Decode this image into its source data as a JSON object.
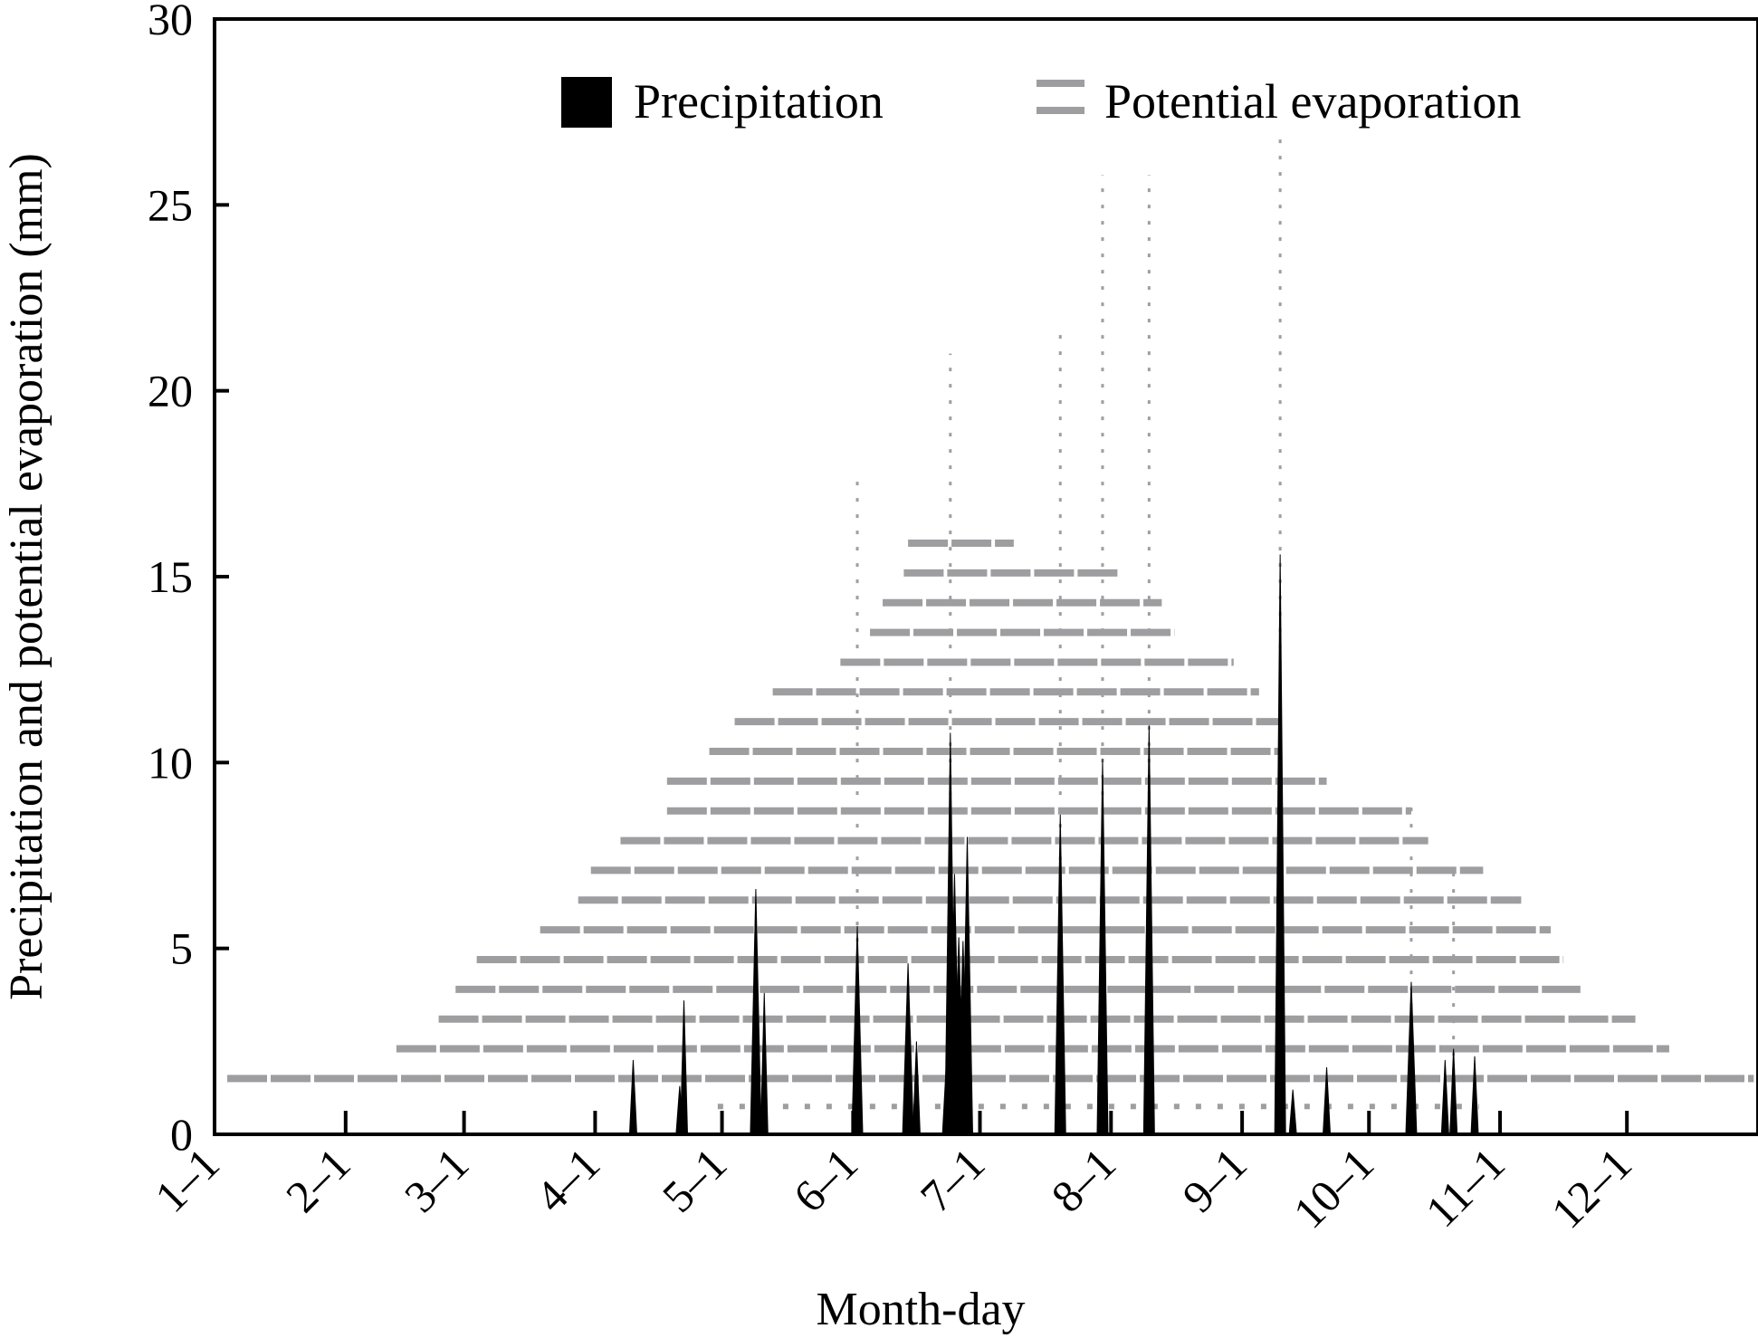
{
  "chart_data": {
    "type": "area",
    "title": "",
    "xlabel": "Month-day",
    "ylabel": "Precipitation and potential evaporation (mm)",
    "x_domain": [
      1,
      366
    ],
    "ylim": [
      0,
      30
    ],
    "y_ticks": [
      0,
      5,
      10,
      15,
      20,
      25,
      30
    ],
    "x_ticks": [
      {
        "day": 1,
        "label": "1–1"
      },
      {
        "day": 32,
        "label": "2–1"
      },
      {
        "day": 60,
        "label": "3–1"
      },
      {
        "day": 91,
        "label": "4–1"
      },
      {
        "day": 121,
        "label": "5–1"
      },
      {
        "day": 152,
        "label": "6–1"
      },
      {
        "day": 182,
        "label": "7–1"
      },
      {
        "day": 213,
        "label": "8–1"
      },
      {
        "day": 244,
        "label": "9–1"
      },
      {
        "day": 274,
        "label": "10–1"
      },
      {
        "day": 305,
        "label": "11–1"
      },
      {
        "day": 335,
        "label": "12–1"
      }
    ],
    "grid": false,
    "legend_position": "top",
    "colors": {
      "precipitation": "#000000",
      "potential_evaporation": "#9e9ea0"
    },
    "series": [
      {
        "name": "Precipitation",
        "style": "filled spikes",
        "points": [
          {
            "day": 100,
            "value": 2.0
          },
          {
            "day": 111,
            "value": 1.3
          },
          {
            "day": 112,
            "value": 3.6
          },
          {
            "day": 129,
            "value": 6.6
          },
          {
            "day": 131,
            "value": 3.8
          },
          {
            "day": 153,
            "value": 5.6
          },
          {
            "day": 165,
            "value": 4.6
          },
          {
            "day": 167,
            "value": 2.5
          },
          {
            "day": 174,
            "value": 1.8
          },
          {
            "day": 175,
            "value": 10.8
          },
          {
            "day": 176,
            "value": 7.0
          },
          {
            "day": 177,
            "value": 5.3
          },
          {
            "day": 178,
            "value": 5.2
          },
          {
            "day": 179,
            "value": 8.0
          },
          {
            "day": 201,
            "value": 8.6
          },
          {
            "day": 211,
            "value": 10.1
          },
          {
            "day": 222,
            "value": 11.0
          },
          {
            "day": 253,
            "value": 15.6
          },
          {
            "day": 256,
            "value": 1.2
          },
          {
            "day": 264,
            "value": 1.8
          },
          {
            "day": 284,
            "value": 4.1
          },
          {
            "day": 292,
            "value": 2.0
          },
          {
            "day": 294,
            "value": 2.3
          },
          {
            "day": 299,
            "value": 2.1
          }
        ]
      },
      {
        "name": "Potential evaporation",
        "style": "dashed horizontal bands (one per mm level)",
        "bands": [
          {
            "level": 1.5,
            "start_day": 4,
            "end_day": 365
          },
          {
            "level": 2.3,
            "start_day": 44,
            "end_day": 345
          },
          {
            "level": 3.1,
            "start_day": 54,
            "end_day": 337
          },
          {
            "level": 3.9,
            "start_day": 58,
            "end_day": 324
          },
          {
            "level": 4.7,
            "start_day": 63,
            "end_day": 320
          },
          {
            "level": 5.5,
            "start_day": 78,
            "end_day": 317
          },
          {
            "level": 6.3,
            "start_day": 87,
            "end_day": 310
          },
          {
            "level": 7.1,
            "start_day": 90,
            "end_day": 301
          },
          {
            "level": 7.9,
            "start_day": 97,
            "end_day": 288
          },
          {
            "level": 8.7,
            "start_day": 108,
            "end_day": 284
          },
          {
            "level": 9.5,
            "start_day": 108,
            "end_day": 264
          },
          {
            "level": 10.3,
            "start_day": 118,
            "end_day": 253
          },
          {
            "level": 11.1,
            "start_day": 124,
            "end_day": 253
          },
          {
            "level": 11.9,
            "start_day": 133,
            "end_day": 248
          },
          {
            "level": 12.7,
            "start_day": 149,
            "end_day": 242
          },
          {
            "level": 13.5,
            "start_day": 156,
            "end_day": 228
          },
          {
            "level": 14.3,
            "start_day": 159,
            "end_day": 225
          },
          {
            "level": 15.1,
            "start_day": 164,
            "end_day": 215
          },
          {
            "level": 15.9,
            "start_day": 165,
            "end_day": 190
          }
        ],
        "peaks": [
          {
            "day": 153,
            "value": 17.8
          },
          {
            "day": 175,
            "value": 21.0
          },
          {
            "day": 201,
            "value": 21.8
          },
          {
            "day": 211,
            "value": 25.8
          },
          {
            "day": 222,
            "value": 25.8
          },
          {
            "day": 253,
            "value": 26.8
          },
          {
            "day": 284,
            "value": 9.0
          },
          {
            "day": 294,
            "value": 7.2
          }
        ]
      }
    ],
    "legend": [
      {
        "label": "Precipitation",
        "swatch": "filled-square"
      },
      {
        "label": "Potential evaporation",
        "swatch": "double-dash"
      }
    ]
  }
}
